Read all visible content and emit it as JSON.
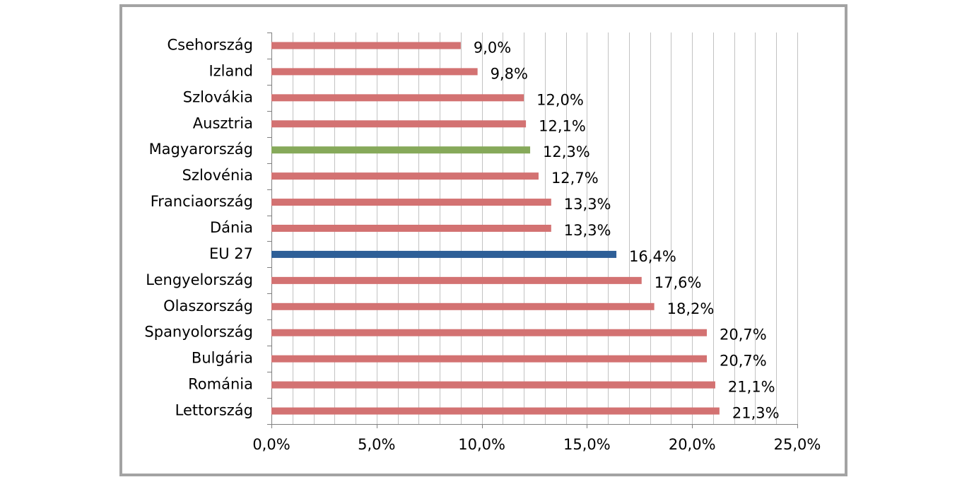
{
  "chart_data": {
    "type": "bar",
    "orientation": "horizontal",
    "title": "",
    "xlabel": "",
    "ylabel": "",
    "categories": [
      "Csehország",
      "Izland",
      "Szlovákia",
      "Ausztria",
      "Magyarország",
      "Szlovénia",
      "Franciaország",
      "Dánia",
      "EU 27",
      "Lengyelország",
      "Olaszország",
      "Spanyolország",
      "Bulgária",
      "Románia",
      "Lettország"
    ],
    "values": [
      9.0,
      9.8,
      12.0,
      12.1,
      12.3,
      12.7,
      13.3,
      13.3,
      16.4,
      17.6,
      18.2,
      20.7,
      20.7,
      21.1,
      21.3
    ],
    "data_labels": [
      "9,0%",
      "9,8%",
      "12,0%",
      "12,1%",
      "12,3%",
      "12,7%",
      "13,3%",
      "13,3%",
      "16,4%",
      "17,6%",
      "18,2%",
      "20,7%",
      "20,7%",
      "21,1%",
      "21,3%"
    ],
    "bar_colors": [
      "#d37272",
      "#d37272",
      "#d37272",
      "#d37272",
      "#86a95a",
      "#d37272",
      "#d37272",
      "#d37272",
      "#2e5f97",
      "#d37272",
      "#d37272",
      "#d37272",
      "#d37272",
      "#d37272",
      "#d37272"
    ],
    "xlim": [
      0,
      25
    ],
    "x_ticks": [
      0,
      5,
      10,
      15,
      20,
      25
    ],
    "x_tick_labels": [
      "0,0%",
      "5,0%",
      "10,0%",
      "15,0%",
      "20,0%",
      "25,0%"
    ],
    "minor_gridline_step": 1,
    "grid": true,
    "legend": "none",
    "colors": {
      "default_bar": "#d37272",
      "highlight_hungary": "#86a95a",
      "highlight_eu": "#2e5f97",
      "gridline": "#c2c2c2",
      "axis": "#808080",
      "frame": "#a3a3a3"
    }
  }
}
